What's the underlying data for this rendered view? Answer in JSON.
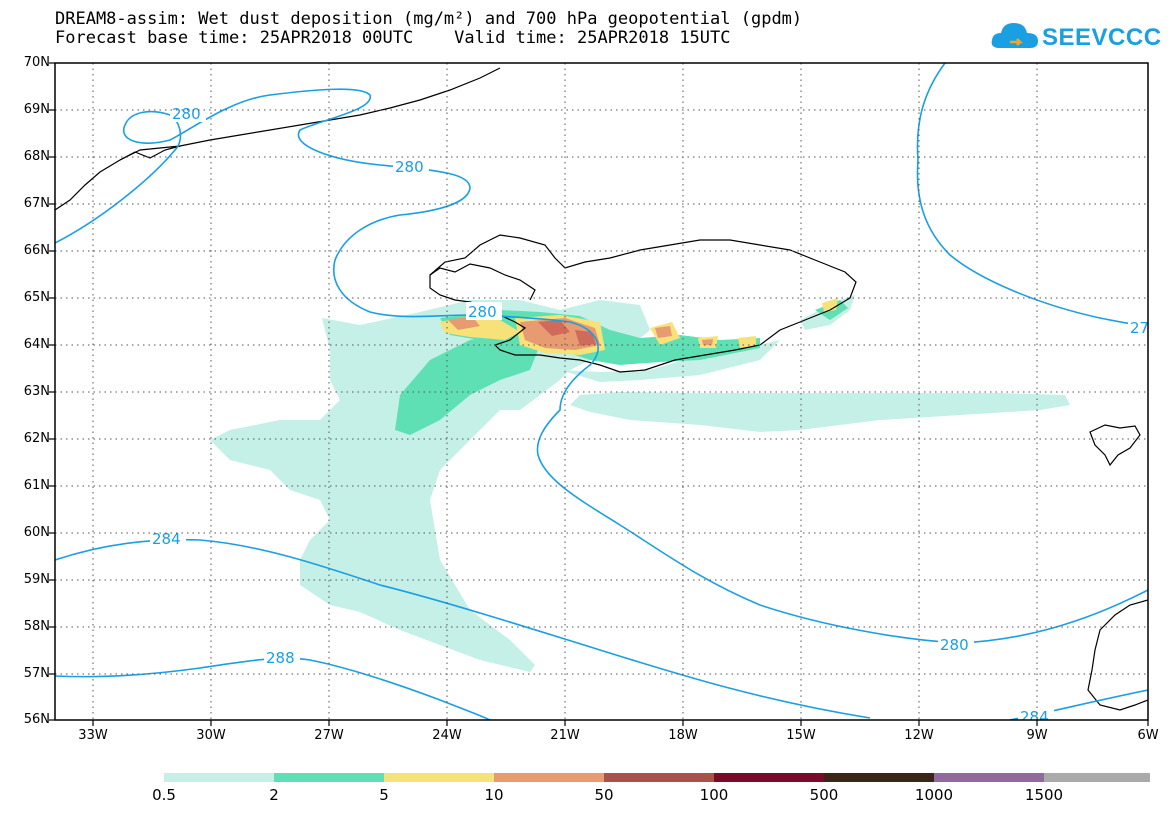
{
  "title": {
    "line1": "DREAM8-assim: Wet dust deposition (mg/m²) and 700 hPa geopotential (gpdm)",
    "line2": "Forecast base time: 25APR2018 00UTC    Valid time: 25APR2018 15UTC"
  },
  "logo": {
    "text": "SEEVCCC",
    "icon": "cloud-icon"
  },
  "axes": {
    "lat_labels": [
      "70N",
      "69N",
      "68N",
      "67N",
      "66N",
      "65N",
      "64N",
      "63N",
      "62N",
      "61N",
      "60N",
      "59N",
      "58N",
      "57N",
      "56N"
    ],
    "lon_labels": [
      "33W",
      "30W",
      "27W",
      "24W",
      "21W",
      "18W",
      "15W",
      "12W",
      "9W",
      "6W"
    ]
  },
  "contour_labels": [
    "280",
    "280",
    "280",
    "284",
    "288",
    "280",
    "284",
    "27"
  ],
  "colorbar": {
    "labels": [
      "0.5",
      "2",
      "5",
      "10",
      "50",
      "100",
      "500",
      "1000",
      "1500"
    ],
    "colors": [
      "#c4f0e8",
      "#5ee0b4",
      "#f7e27a",
      "#e89a70",
      "#a9524a",
      "#7a0a2a",
      "#3a2618",
      "#8e6a9e",
      "#aaaaaa"
    ]
  },
  "colors": {
    "contour": "#1a9fe2",
    "coast": "#000000",
    "dust_levels": [
      "#c4f0e8",
      "#5ee0b4",
      "#f7e27a",
      "#e89a70",
      "#d06a5a"
    ]
  }
}
